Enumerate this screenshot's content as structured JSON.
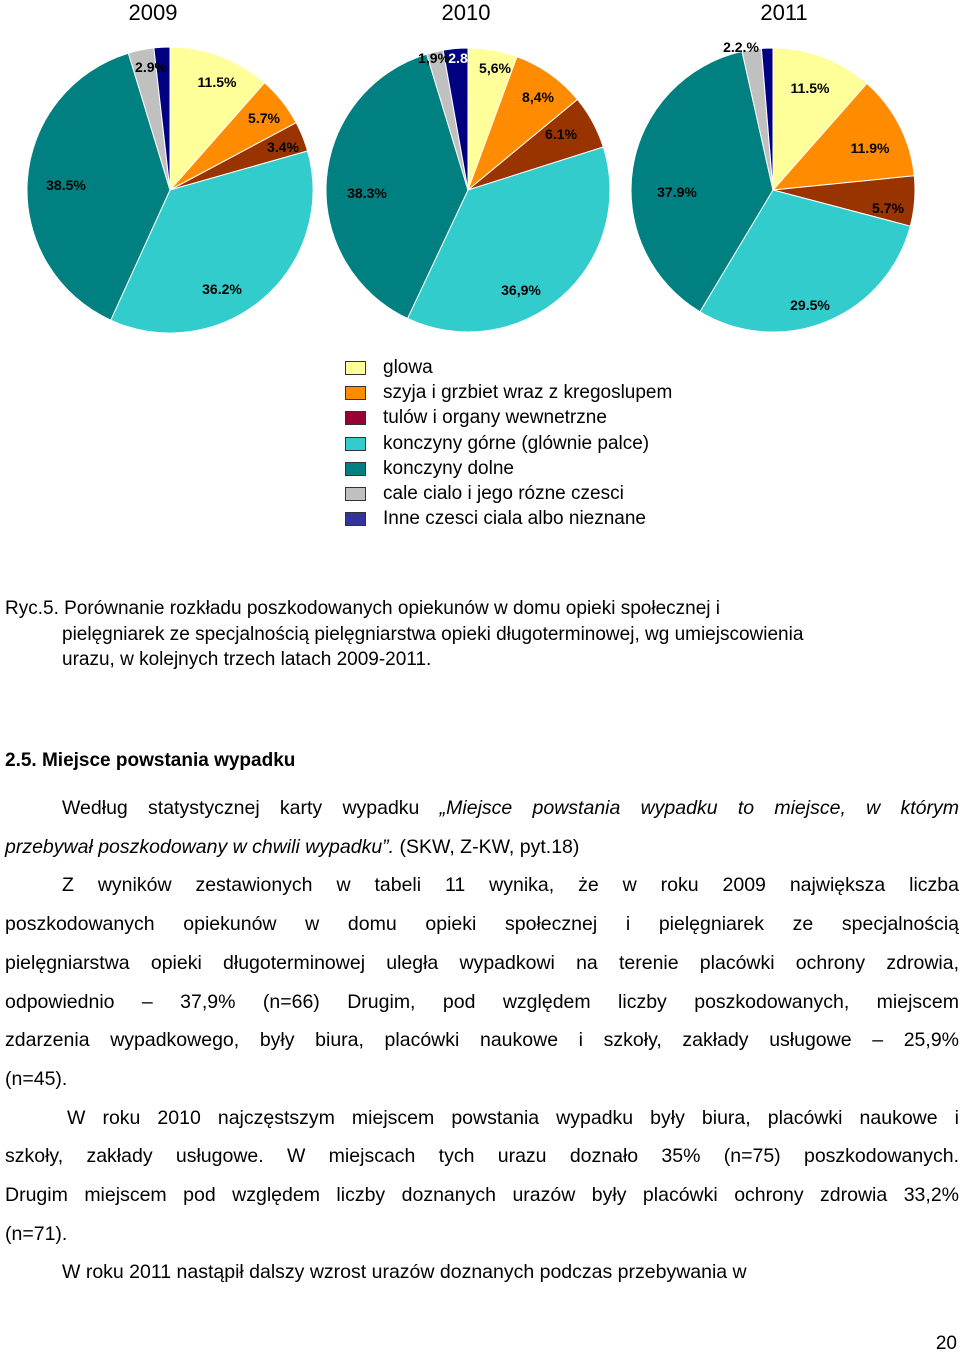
{
  "chart_data": [
    {
      "type": "pie",
      "title": "2009",
      "categories": [
        "glowa",
        "szyja i grzbiet wraz z kregoslupem",
        "tulów i organy wewnetrzne",
        "konczyny górne (glównie palce)",
        "konczyny dolne",
        "cale cialo i jego rózne czesci",
        "Inne czesci ciala albo nieznane"
      ],
      "values": [
        11.5,
        5.7,
        3.4,
        36.2,
        38.5,
        2.9,
        1.8
      ],
      "labels": [
        "11.5%",
        "5.7%",
        "3.4%",
        "36.2%",
        "38.5%",
        "2.9%",
        ""
      ]
    },
    {
      "type": "pie",
      "title": "2010",
      "categories": [
        "glowa",
        "szyja i grzbiet wraz z kregoslupem",
        "tulów i organy wewnetrzne",
        "konczyny górne (glównie palce)",
        "konczyny dolne",
        "cale cialo i jego rózne czesci",
        "Inne czesci ciala albo nieznane"
      ],
      "values": [
        5.6,
        8.4,
        6.1,
        36.9,
        38.3,
        1.9,
        2.8
      ],
      "labels": [
        "5,6%",
        "8,4%",
        "6.1%",
        "36,9%",
        "38.3%",
        "1,9%",
        "2.8"
      ]
    },
    {
      "type": "pie",
      "title": "2011",
      "categories": [
        "glowa",
        "szyja i grzbiet wraz z kregoslupem",
        "tulów i organy wewnetrzne",
        "konczyny górne (glównie palce)",
        "konczyny dolne",
        "cale cialo i jego rózne czesci",
        "Inne czesci ciala albo nieznane"
      ],
      "values": [
        11.5,
        11.9,
        5.7,
        29.5,
        37.9,
        2.2,
        1.3
      ],
      "labels": [
        "11.5%",
        "11.9%",
        "5.7%",
        "29.5%",
        "37.9%",
        "2.2.%",
        ""
      ]
    }
  ],
  "colors": [
    "#ffff99",
    "#ff8c00",
    "#993300",
    "#33cccc",
    "#008080",
    "#c0c0c0",
    "#000080"
  ],
  "legend": [
    {
      "label": "glowa",
      "color": "#ffff99"
    },
    {
      "label": "szyja i grzbiet wraz z kregoslupem",
      "color": "#ff8c00"
    },
    {
      "label": "tulów i organy wewnetrzne",
      "color": "#990033"
    },
    {
      "label": "konczyny górne (glównie palce)",
      "color": "#33cccc"
    },
    {
      "label": "konczyny dolne",
      "color": "#008080"
    },
    {
      "label": "cale cialo i jego rózne czesci",
      "color": "#c0c0c0"
    },
    {
      "label": "Inne czesci ciala albo nieznane",
      "color": "#333399"
    }
  ],
  "caption": {
    "line1": "Ryc.5. Porównanie rozkładu poszkodowanych opiekunów w domu opieki społecznej i",
    "line2": "pielęgniarek ze specjalnością pielęgniarstwa opieki długoterminowej, wg umiejscowienia",
    "line3": "urazu, w kolejnych trzech latach 2009-2011."
  },
  "section": {
    "heading": "2.5. Miejsce powstania wypadku",
    "def_line1_prefix": "Według statystycznej karty wypadku ",
    "def_line1_italic": "„Miejsce powstania wypadku to miejsce, w którym",
    "def_line2_italic": "przebywał poszkodowany w chwili wypadku”.",
    "def_line2_rest": " (SKW, Z-KW, pyt.18)",
    "p1": [
      "Z wyników zestawionych w tabeli 11 wynika, że w roku 2009 największa liczba",
      "poszkodowanych opiekunów w domu opieki społecznej i pielęgniarek ze specjalnością",
      "pielęgniarstwa opieki długoterminowej uległa wypadkowi na terenie placówki ochrony zdrowia,",
      "odpowiednio – 37,9% (n=66) Drugim, pod względem liczby poszkodowanych, miejscem",
      "zdarzenia wypadkowego, były biura, placówki naukowe i szkoły, zakłady usługowe – 25,9%",
      "(n=45)."
    ],
    "p2": [
      "W roku 2010 najczęstszym miejscem powstania wypadku były biura, placówki naukowe i",
      "szkoły, zakłady usługowe. W miejscach tych urazu doznało 35% (n=75) poszkodowanych.",
      "Drugim miejscem pod względem liczby doznanych urazów były placówki ochrony zdrowia 33,2%",
      "(n=71)."
    ],
    "p3": [
      "W roku 2011 nastąpił dalszy wzrost urazów doznanych podczas przebywania w"
    ]
  },
  "page_number": "20"
}
